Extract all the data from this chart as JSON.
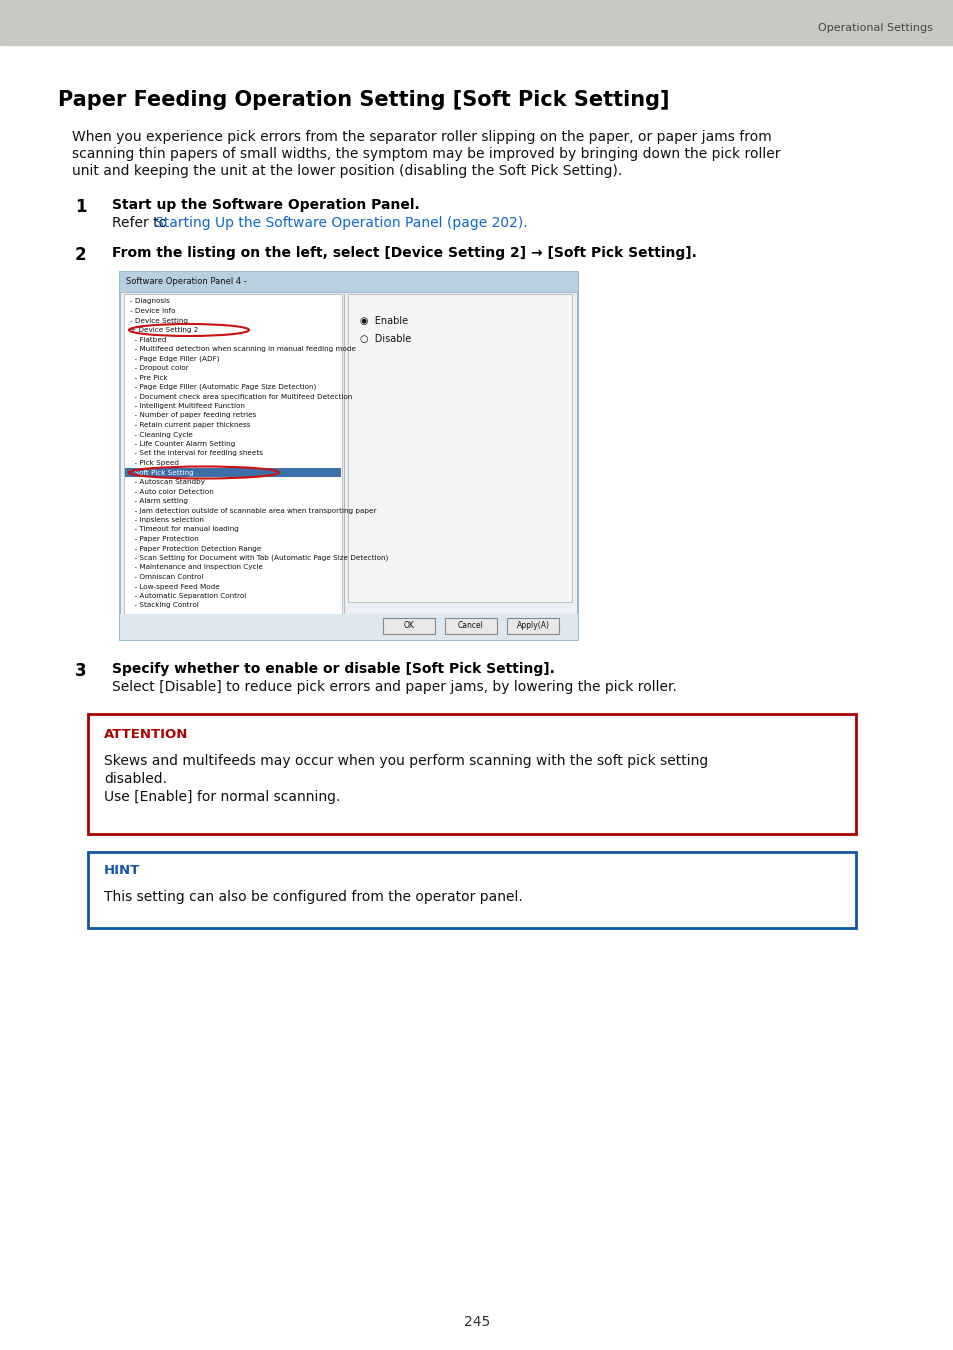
{
  "header_bg_color": "#c8c9c2",
  "header_text": "Operational Settings",
  "header_text_color": "#444444",
  "page_bg_color": "#ffffff",
  "title": "Paper Feeding Operation Setting [Soft Pick Setting]",
  "title_fontsize": 15,
  "body_line1": "When you experience pick errors from the separator roller slipping on the paper, or paper jams from",
  "body_line2": "scanning thin papers of small widths, the symptom may be improved by bringing down the pick roller",
  "body_line3": "unit and keeping the unit at the lower position (disabling the Soft Pick Setting).",
  "body_fontsize": 10,
  "step1_num": "1",
  "step1_bold": "Start up the Software Operation Panel.",
  "step1_link_prefix": "Refer to ",
  "step1_link": "Starting Up the Software Operation Panel (page 202).",
  "step2_num": "2",
  "step2_bold": "From the listing on the left, select [Device Setting 2] → [Soft Pick Setting].",
  "step3_num": "3",
  "step3_bold": "Specify whether to enable or disable [Soft Pick Setting].",
  "step3_body": "Select [Disable] to reduce pick errors and paper jams, by lowering the pick roller.",
  "attention_title": "ATTENTION",
  "attention_title_color": "#aa0000",
  "attention_border_color": "#aa0000",
  "attention_line1": "Skews and multifeeds may occur when you perform scanning with the soft pick setting",
  "attention_line2": "disabled.",
  "attention_line3": "Use [Enable] for normal scanning.",
  "hint_title": "HINT",
  "hint_title_color": "#1155aa",
  "hint_border_color": "#1155aa",
  "hint_text": "This setting can also be configured from the operator panel.",
  "page_number": "245",
  "link_color": "#1166cc",
  "step_fontsize": 10,
  "img_left_items": [
    "- Diagnosis",
    "- Device Info",
    "- Device Setting",
    "+ Device Setting 2",
    "  - Flatbed",
    "  - Multifeed detection when scanning in manual feeding mode",
    "  - Page Edge Filler (ADF)",
    "  - Dropout color",
    "  - Pre Pick",
    "  - Page Edge Filler (Automatic Page Size Detection)",
    "  - Document check area specification for Multifeed Detection",
    "  - Intelligent Multifeed Function",
    "  - Number of paper feeding retries",
    "  - Retain current paper thickness",
    "  - Cleaning Cycle",
    "  - Life Counter Alarm Setting",
    "  - Set the interval for feeding sheets",
    "  - Pick Speed",
    "  Soft Pick Setting",
    "  - Autoscan Standby",
    "  - Auto color Detection",
    "  - Alarm setting",
    "  - Jam detection outside of scannable area when transporting paper",
    "  - Inpslens selection",
    "  - Timeout for manual loading",
    "  - Paper Protection",
    "  - Paper Protection Detection Range",
    "  - Scan Setting for Document with Tab (Automatic Page Size Detection)",
    "  - Maintenance and Inspection Cycle",
    "  - Omniscan Control",
    "  - Low-speed Feed Mode",
    "  - Automatic Separation Control",
    "  - Stacking Control"
  ]
}
